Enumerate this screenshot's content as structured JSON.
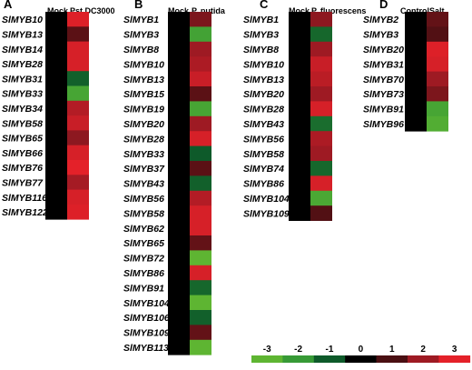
{
  "chart_data": [
    {
      "type": "heatmap",
      "panel": "A",
      "columns": [
        "Mock",
        "Pst DC3000"
      ],
      "rows": [
        "SlMYB10",
        "SlMYB13",
        "SlMYB14",
        "SlMYB28",
        "SlMYB31",
        "SlMYB33",
        "SlMYB34",
        "SlMYB58",
        "SlMYB65",
        "SlMYB66",
        "SlMYB76",
        "SlMYB77",
        "SlMYB116",
        "SlMYB122"
      ],
      "values": [
        [
          0,
          2.9
        ],
        [
          0,
          1.2
        ],
        [
          0,
          2.8
        ],
        [
          0,
          2.8
        ],
        [
          0,
          -1.1
        ],
        [
          0,
          -2.4
        ],
        [
          0,
          2.3
        ],
        [
          0,
          2.6
        ],
        [
          0,
          1.8
        ],
        [
          0,
          2.8
        ],
        [
          0,
          3
        ],
        [
          0,
          2.1
        ],
        [
          0,
          2.8
        ],
        [
          0,
          2.9
        ]
      ]
    },
    {
      "type": "heatmap",
      "panel": "B",
      "columns": [
        "Mock",
        "P. putida"
      ],
      "rows": [
        "SlMYB1",
        "SlMYB3",
        "SlMYB8",
        "SlMYB10",
        "SlMYB13",
        "SlMYB15",
        "SlMYB19",
        "SlMYB20",
        "SlMYB28",
        "SlMYB33",
        "SlMYB37",
        "SlMYB43",
        "SlMYB56",
        "SlMYB58",
        "SlMYB62",
        "SlMYB65",
        "SlMYB72",
        "SlMYB86",
        "SlMYB91",
        "SlMYB104",
        "SlMYB106",
        "SlMYB109",
        "SlMYB113"
      ],
      "values": [
        [
          0,
          1.6
        ],
        [
          0,
          -2.3
        ],
        [
          0,
          2
        ],
        [
          0,
          2.2
        ],
        [
          0,
          2.6
        ],
        [
          0,
          1.2
        ],
        [
          0,
          -2.4
        ],
        [
          0,
          2
        ],
        [
          0,
          2.8
        ],
        [
          0,
          -1
        ],
        [
          0,
          1.2
        ],
        [
          0,
          -1.1
        ],
        [
          0,
          2.3
        ],
        [
          0,
          2.8
        ],
        [
          0,
          2.8
        ],
        [
          0,
          1.3
        ],
        [
          0,
          -3
        ],
        [
          0,
          2.8
        ],
        [
          0,
          -1.2
        ],
        [
          0,
          -3
        ],
        [
          0,
          -1.1
        ],
        [
          0,
          1.3
        ],
        [
          0,
          -3
        ]
      ]
    },
    {
      "type": "heatmap",
      "panel": "C",
      "columns": [
        "Mock",
        "P. fluorescens"
      ],
      "rows": [
        "SlMYB1",
        "SlMYB3",
        "SlMYB8",
        "SlMYB10",
        "SlMYB13",
        "SlMYB20",
        "SlMYB28",
        "SlMYB43",
        "SlMYB56",
        "SlMYB58",
        "SlMYB74",
        "SlMYB86",
        "SlMYB104",
        "SlMYB109"
      ],
      "values": [
        [
          0,
          1.8
        ],
        [
          0,
          -1.2
        ],
        [
          0,
          2
        ],
        [
          0,
          2.6
        ],
        [
          0,
          2.4
        ],
        [
          0,
          2
        ],
        [
          0,
          2.8
        ],
        [
          0,
          -1.3
        ],
        [
          0,
          2.2
        ],
        [
          0,
          2
        ],
        [
          0,
          -1.2
        ],
        [
          0,
          2.8
        ],
        [
          0,
          -2.5
        ],
        [
          0,
          1.1
        ]
      ]
    },
    {
      "type": "heatmap",
      "panel": "D",
      "columns": [
        "Control",
        "Salt"
      ],
      "rows": [
        "SlMYB2",
        "SlMYB3",
        "SlMYB20",
        "SlMYB31",
        "SlMYB70",
        "SlMYB73",
        "SlMYB91",
        "SlMYB96"
      ],
      "values": [
        [
          0,
          1.3
        ],
        [
          0,
          1.1
        ],
        [
          0,
          2.9
        ],
        [
          0,
          2.8
        ],
        [
          0,
          2
        ],
        [
          0,
          1.6
        ],
        [
          0,
          -2.4
        ],
        [
          0,
          -2.7
        ]
      ]
    }
  ],
  "scale": {
    "ticks": [
      -3,
      -2,
      -1,
      0,
      1,
      2,
      3
    ],
    "tick_labels": [
      "-3",
      "-2",
      "-1",
      "0",
      "1",
      "2",
      "3"
    ],
    "colors": [
      "#5eb532",
      "#379a36",
      "#0e5a2a",
      "#000000",
      "#4a0f12",
      "#9e1a23",
      "#e42129"
    ]
  }
}
